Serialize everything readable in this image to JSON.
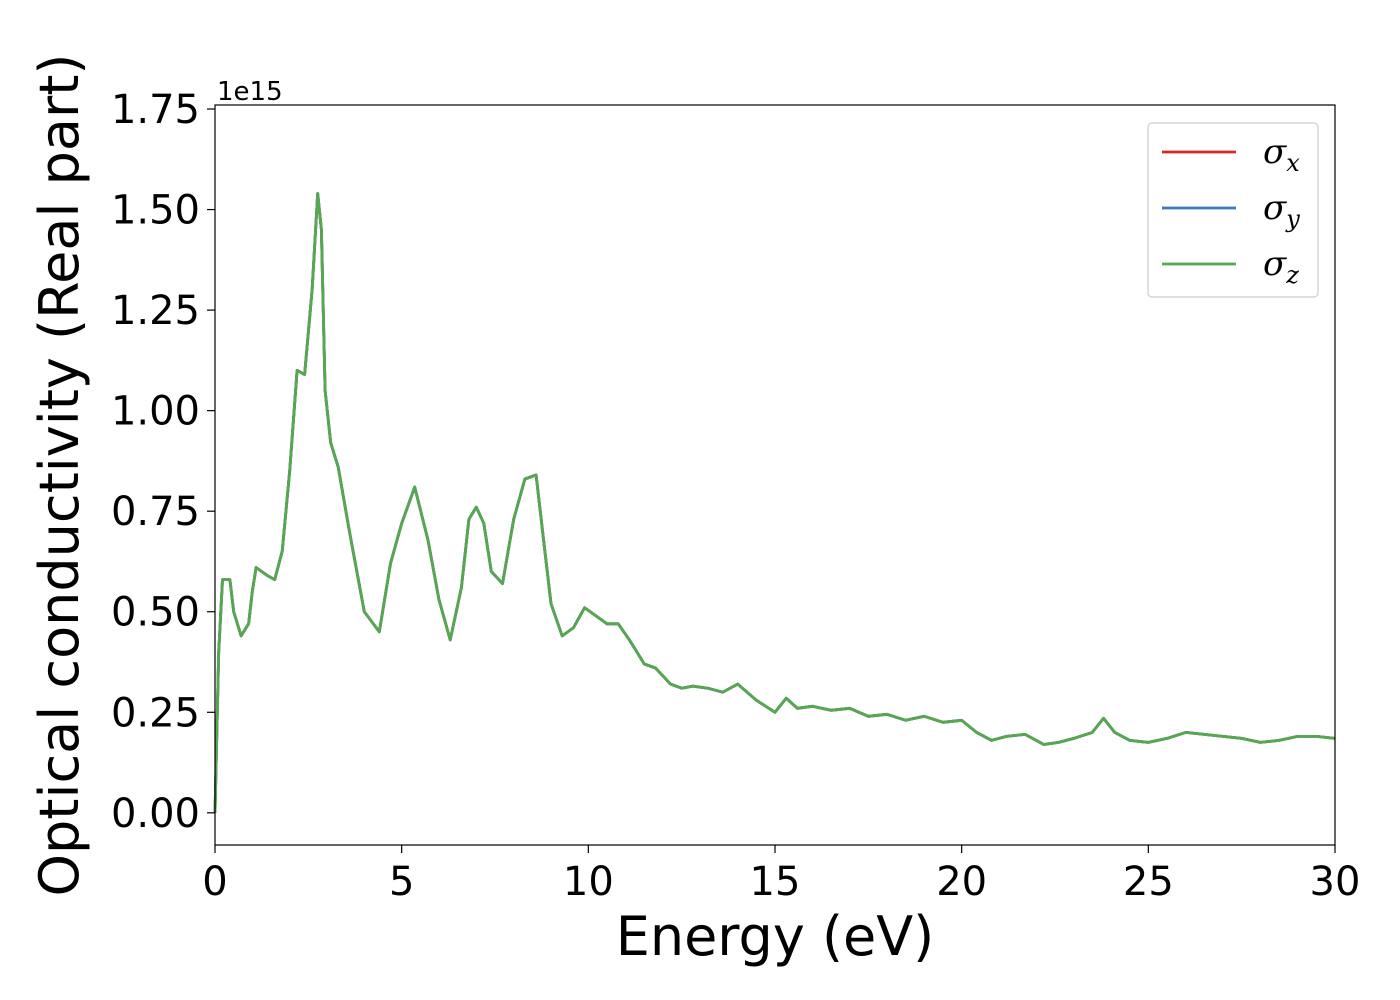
{
  "chart_data": {
    "type": "line",
    "xlabel": "Energy (eV)",
    "ylabel": "Optical conductivity (Real part)",
    "y_offset_label": "1e15",
    "xlim": [
      0,
      30
    ],
    "ylim": [
      -0.08,
      1.76
    ],
    "xticks": [
      0,
      5,
      10,
      15,
      20,
      25,
      30
    ],
    "xtick_labels": [
      "0",
      "5",
      "10",
      "15",
      "20",
      "25",
      "30"
    ],
    "yticks": [
      0,
      0.25,
      0.5,
      0.75,
      1.0,
      1.25,
      1.5,
      1.75
    ],
    "ytick_labels": [
      "0.00",
      "0.25",
      "0.50",
      "0.75",
      "1.00",
      "1.25",
      "1.50",
      "1.75"
    ],
    "grid": false,
    "legend_position": "top-right",
    "series": [
      {
        "name": "σx",
        "symbol": "σ",
        "subscript": "x",
        "color": "#d62728"
      },
      {
        "name": "σy",
        "symbol": "σ",
        "subscript": "y",
        "color": "#3a7bbf"
      },
      {
        "name": "σz",
        "symbol": "σ",
        "subscript": "z",
        "color": "#55a84f"
      }
    ],
    "x": [
      0,
      0.1,
      0.2,
      0.4,
      0.5,
      0.7,
      0.9,
      1.0,
      1.1,
      1.4,
      1.6,
      1.8,
      2.0,
      2.2,
      2.4,
      2.6,
      2.75,
      2.85,
      2.95,
      3.1,
      3.3,
      3.6,
      4.0,
      4.4,
      4.7,
      5.0,
      5.35,
      5.7,
      6.0,
      6.3,
      6.6,
      6.8,
      7.0,
      7.2,
      7.4,
      7.7,
      8.0,
      8.3,
      8.6,
      8.8,
      9.0,
      9.3,
      9.6,
      9.9,
      10.2,
      10.5,
      10.8,
      11.1,
      11.5,
      11.8,
      12.2,
      12.5,
      12.8,
      13.2,
      13.6,
      14.0,
      14.5,
      15.0,
      15.3,
      15.6,
      16.0,
      16.5,
      17.0,
      17.5,
      18.0,
      18.5,
      19.0,
      19.5,
      20.0,
      20.4,
      20.8,
      21.2,
      21.7,
      22.2,
      22.6,
      23.0,
      23.5,
      23.8,
      24.1,
      24.5,
      25.0,
      25.5,
      26.0,
      26.5,
      27.0,
      27.5,
      28.0,
      28.5,
      29.0,
      29.5,
      30.0
    ],
    "series_values": [
      0,
      0.4,
      0.58,
      0.58,
      0.5,
      0.44,
      0.47,
      0.55,
      0.61,
      0.59,
      0.58,
      0.65,
      0.85,
      1.1,
      1.09,
      1.3,
      1.54,
      1.45,
      1.05,
      0.92,
      0.86,
      0.7,
      0.5,
      0.45,
      0.62,
      0.72,
      0.81,
      0.68,
      0.53,
      0.43,
      0.56,
      0.73,
      0.76,
      0.72,
      0.6,
      0.57,
      0.73,
      0.83,
      0.84,
      0.68,
      0.52,
      0.44,
      0.46,
      0.51,
      0.49,
      0.47,
      0.47,
      0.43,
      0.37,
      0.36,
      0.32,
      0.31,
      0.315,
      0.31,
      0.3,
      0.32,
      0.28,
      0.25,
      0.285,
      0.26,
      0.265,
      0.255,
      0.26,
      0.24,
      0.245,
      0.23,
      0.24,
      0.225,
      0.23,
      0.2,
      0.18,
      0.19,
      0.195,
      0.17,
      0.175,
      0.185,
      0.2,
      0.235,
      0.2,
      0.18,
      0.175,
      0.185,
      0.2,
      0.195,
      0.19,
      0.185,
      0.175,
      0.18,
      0.19,
      0.19,
      0.185
    ]
  }
}
